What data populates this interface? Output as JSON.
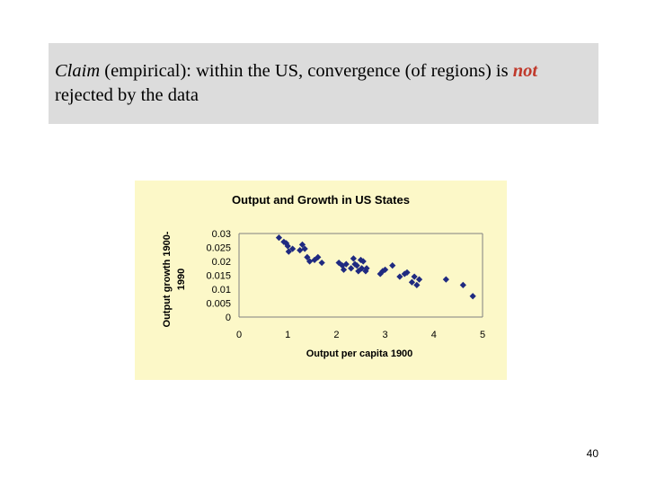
{
  "slide": {
    "claim_word": "Claim",
    "claim_rest": " (empirical): within the US, convergence (of regions) is ",
    "not_word": "not",
    "claim_end": " rejected by the data",
    "page_number": "40"
  },
  "colors": {
    "claim_box_bg": "#dcdcdc",
    "not_color": "#c0392b",
    "chart_bg": "#fcf8c8",
    "marker": "#1f2a80",
    "axis": "#808080"
  },
  "chart_data": {
    "type": "scatter",
    "title": "Output and Growth in US States",
    "xlabel": "Output per capita 1900",
    "ylabel": "Output growth 1900-1990",
    "xlim": [
      0,
      5
    ],
    "ylim": [
      0,
      0.03
    ],
    "xticks": [
      "0",
      "1",
      "2",
      "3",
      "4",
      "5"
    ],
    "yticks": [
      "0",
      "0.005",
      "0.01",
      "0.015",
      "0.02",
      "0.025",
      "0.03"
    ],
    "grid": false,
    "legend": "none",
    "marker_shape": "diamond",
    "x": [
      0.82,
      0.92,
      0.97,
      1.0,
      1.02,
      1.1,
      1.25,
      1.3,
      1.35,
      1.4,
      1.45,
      1.55,
      1.62,
      1.7,
      2.05,
      2.12,
      2.15,
      2.2,
      2.3,
      2.35,
      2.38,
      2.42,
      2.45,
      2.5,
      2.52,
      2.55,
      2.6,
      2.62,
      2.9,
      2.95,
      3.0,
      3.15,
      3.3,
      3.4,
      3.45,
      3.55,
      3.6,
      3.65,
      3.7,
      4.25,
      4.6,
      4.8
    ],
    "y": [
      0.0285,
      0.027,
      0.0265,
      0.0255,
      0.0235,
      0.0245,
      0.024,
      0.026,
      0.0245,
      0.0215,
      0.02,
      0.0205,
      0.0215,
      0.0195,
      0.0195,
      0.0185,
      0.017,
      0.019,
      0.0175,
      0.021,
      0.019,
      0.0185,
      0.0165,
      0.0205,
      0.0175,
      0.02,
      0.0165,
      0.0175,
      0.0155,
      0.0165,
      0.017,
      0.0185,
      0.0145,
      0.0155,
      0.016,
      0.0125,
      0.0145,
      0.0115,
      0.0135,
      0.0135,
      0.0115,
      0.0075
    ]
  }
}
